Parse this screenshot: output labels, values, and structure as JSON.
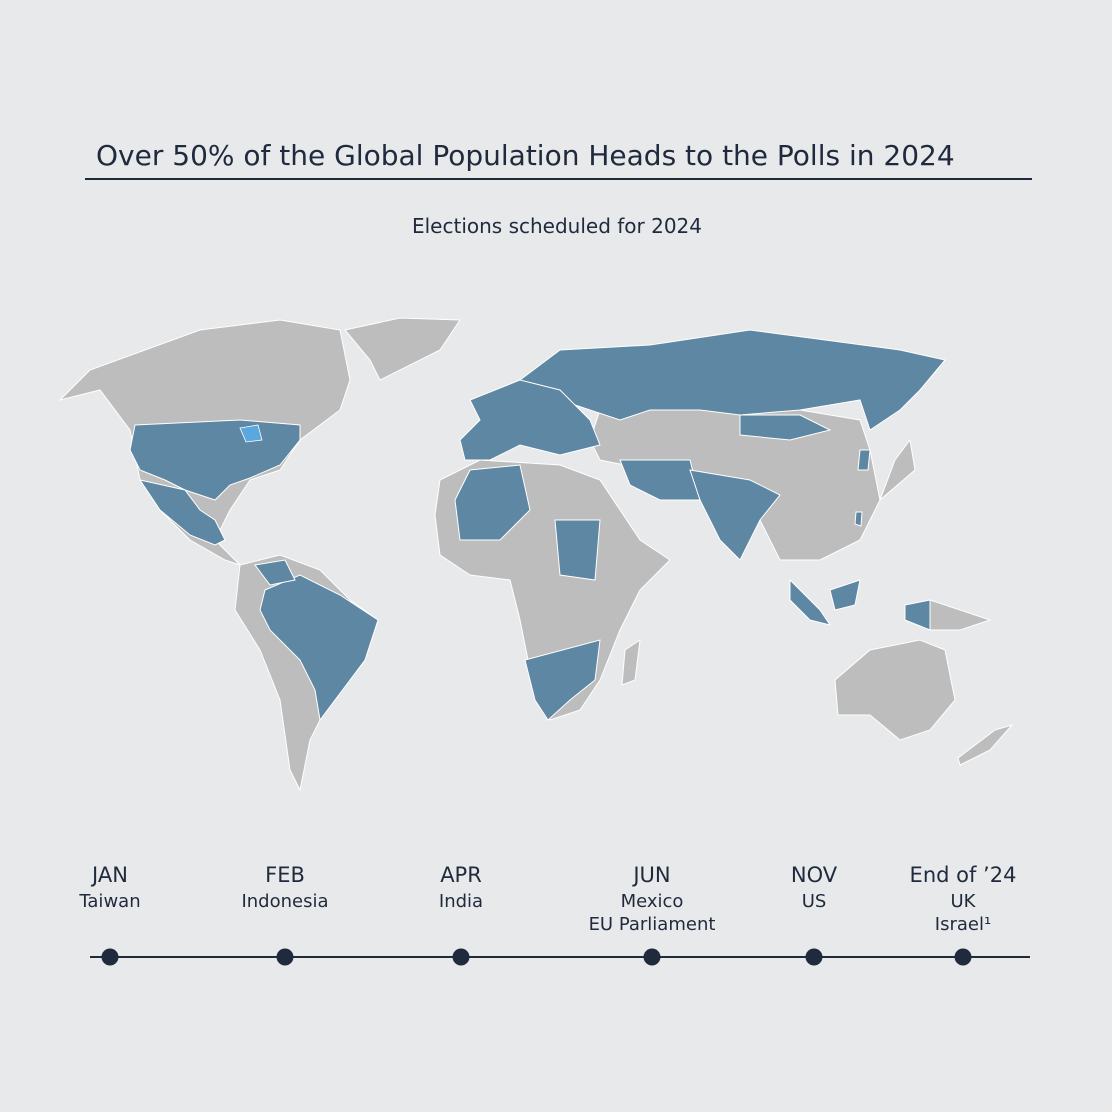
{
  "header": {
    "title": "Over 50% of the Global Population Heads to the Polls in 2024",
    "subtitle": "Elections scheduled for 2024"
  },
  "timeline": [
    {
      "month": "JAN",
      "elections": [
        "Taiwan"
      ]
    },
    {
      "month": "FEB",
      "elections": [
        "Indonesia"
      ]
    },
    {
      "month": "APR",
      "elections": [
        "India"
      ]
    },
    {
      "month": "JUN",
      "elections": [
        "Mexico",
        "EU Parliament"
      ]
    },
    {
      "month": "NOV",
      "elections": [
        "US"
      ]
    },
    {
      "month": "End of ’24",
      "elections": [
        "UK",
        "Israel¹"
      ]
    }
  ]
}
